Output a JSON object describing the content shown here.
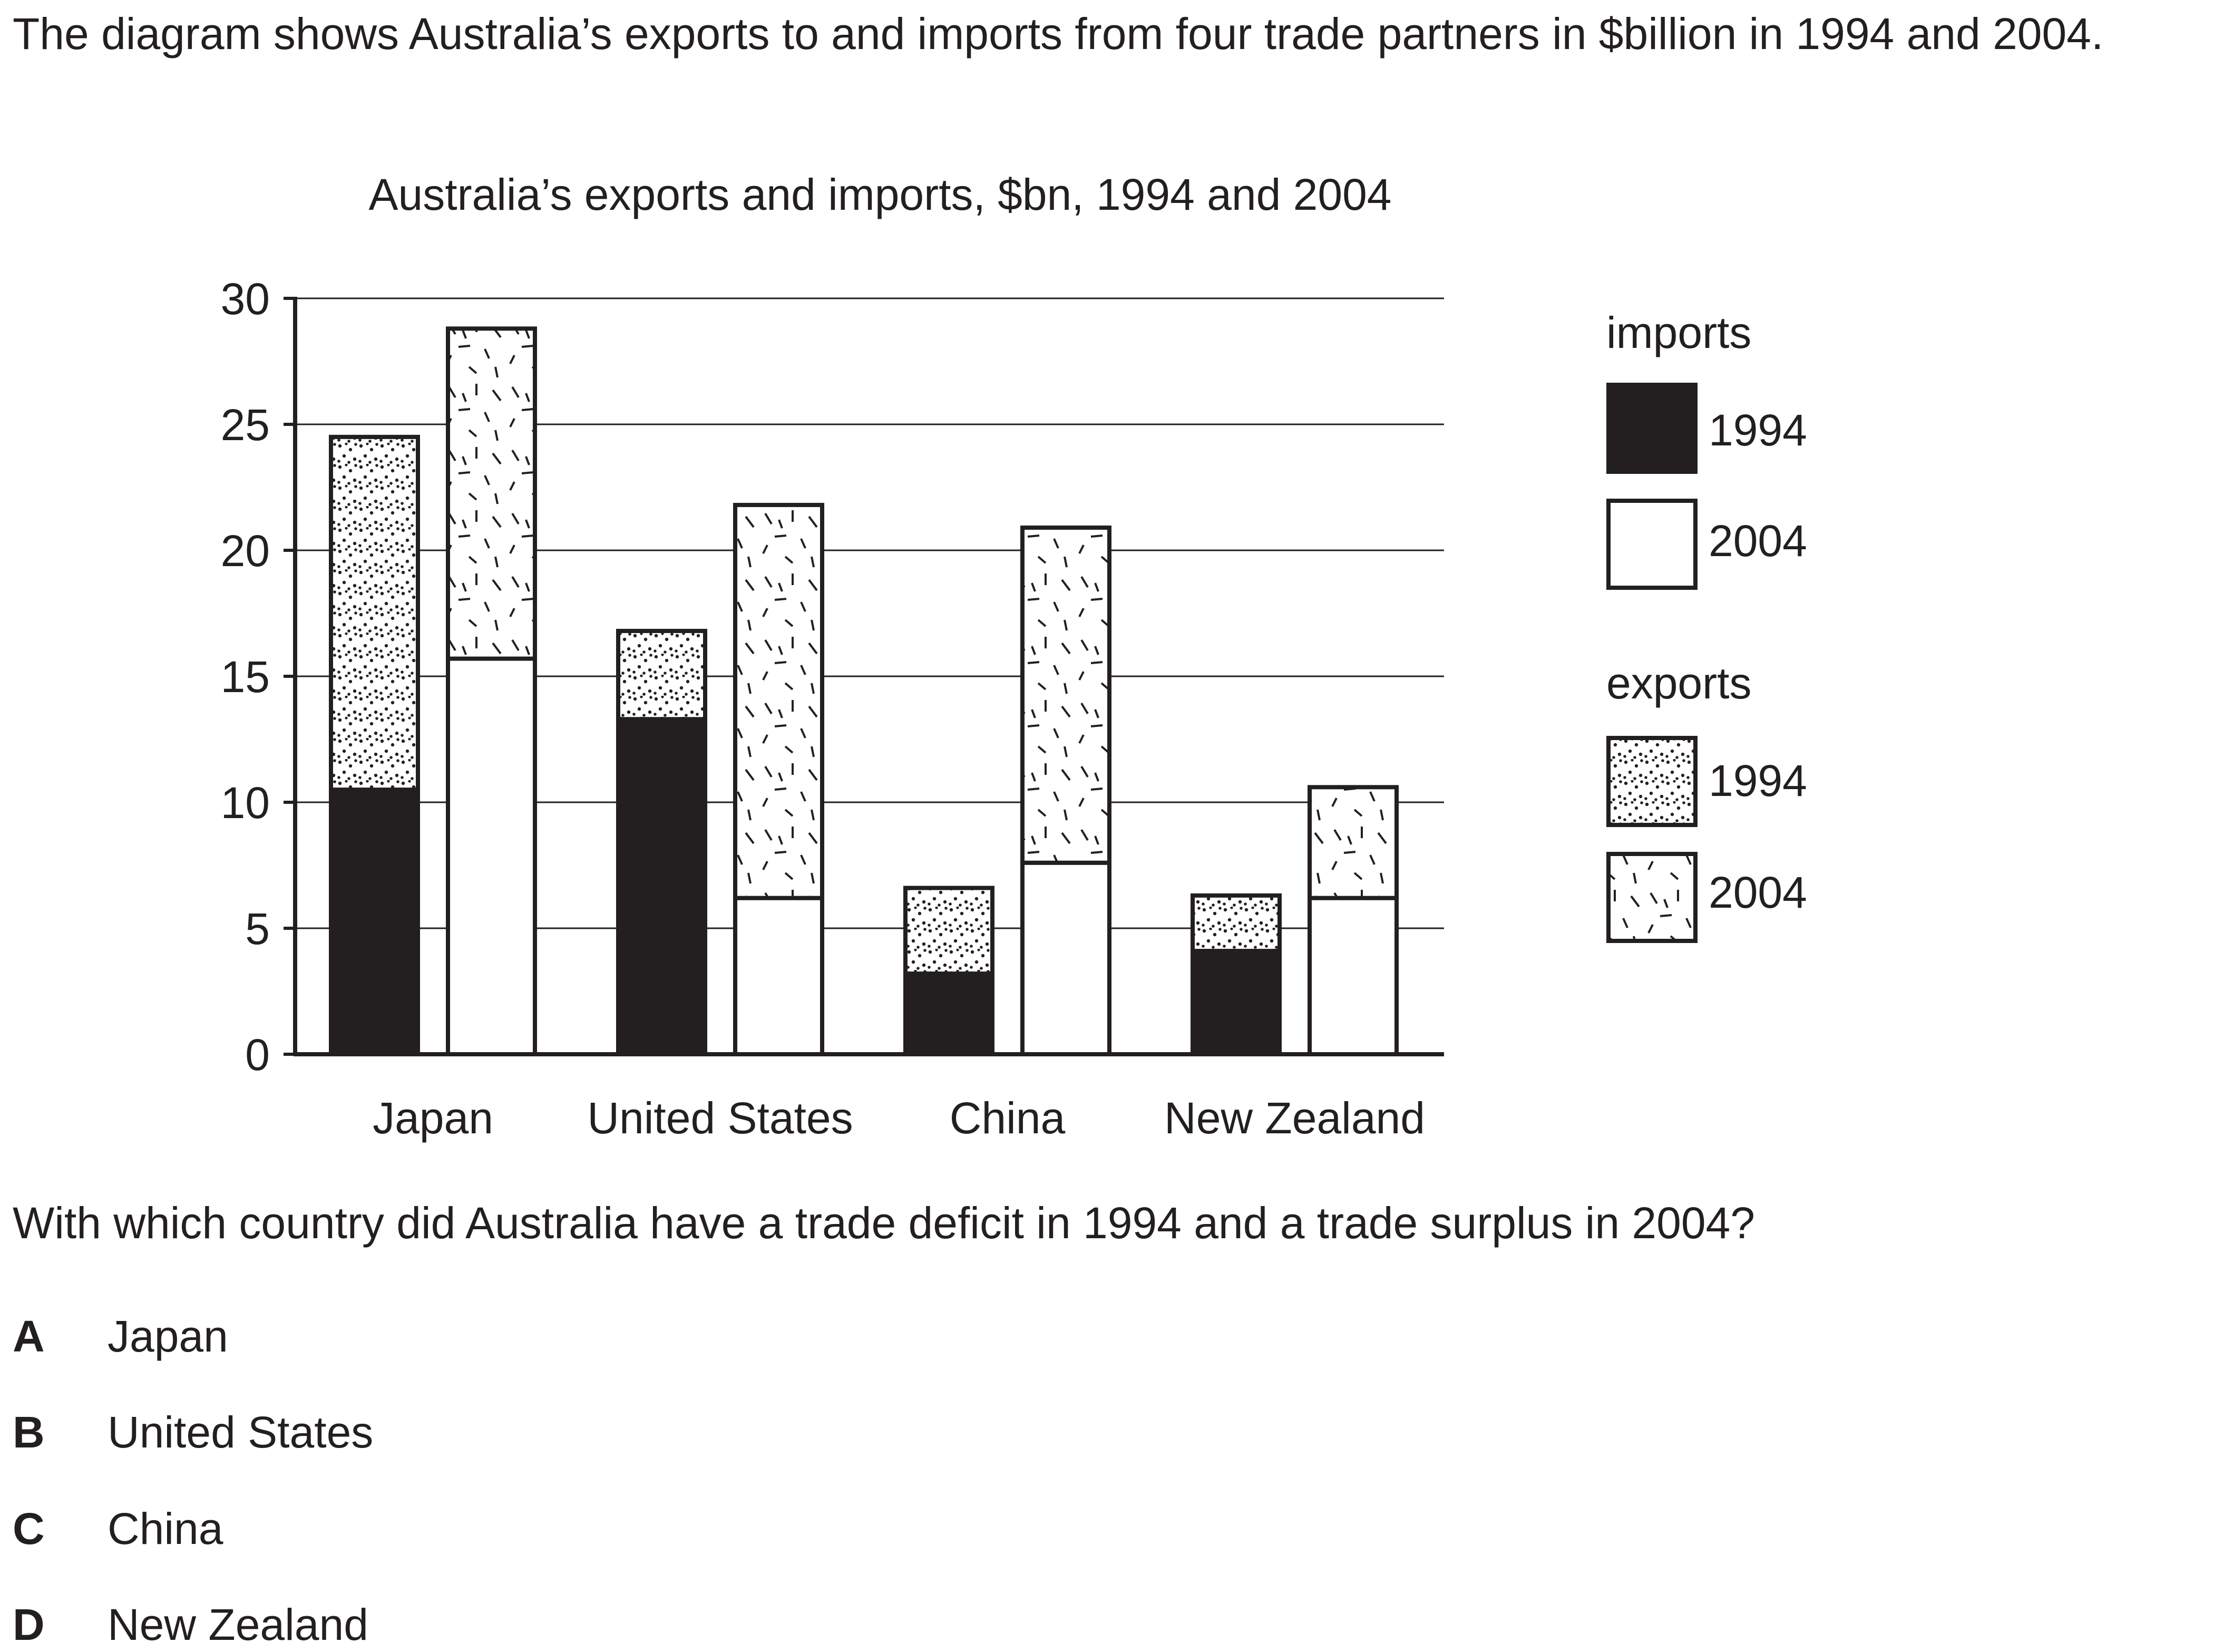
{
  "intro": "The diagram shows Australia’s exports to and imports from four trade partners in $billion in 1994 and 2004.",
  "question": "With which country did Australia have a trade deficit in 1994 and a trade surplus in 2004?",
  "options": [
    {
      "letter": "A",
      "text": "Japan"
    },
    {
      "letter": "B",
      "text": "United States"
    },
    {
      "letter": "C",
      "text": "China"
    },
    {
      "letter": "D",
      "text": "New Zealand"
    }
  ],
  "chart_data": {
    "type": "bar",
    "stacked": true,
    "title": "Australia’s exports and imports, $bn, 1994 and 2004",
    "categories": [
      "Japan",
      "United States",
      "China",
      "New Zealand"
    ],
    "y_ticks": [
      "0",
      "5",
      "10",
      "15",
      "20",
      "25",
      "30"
    ],
    "ylim": [
      0,
      30
    ],
    "grid": true,
    "legend_position": "right",
    "legend": {
      "imports_heading": "imports",
      "exports_heading": "exports",
      "imports_1994": "1994",
      "imports_2004": "2004",
      "exports_1994": "1994",
      "exports_2004": "2004"
    },
    "series": [
      {
        "group": "imports",
        "year": "1994",
        "values": [
          10.5,
          13.3,
          3.2,
          4.1
        ]
      },
      {
        "group": "exports",
        "year": "1994",
        "values": [
          14.0,
          3.5,
          3.4,
          2.2
        ]
      },
      {
        "group": "imports",
        "year": "2004",
        "values": [
          15.7,
          6.2,
          7.6,
          6.2
        ]
      },
      {
        "group": "exports",
        "year": "2004",
        "values": [
          13.1,
          15.6,
          13.3,
          4.4
        ]
      }
    ]
  }
}
